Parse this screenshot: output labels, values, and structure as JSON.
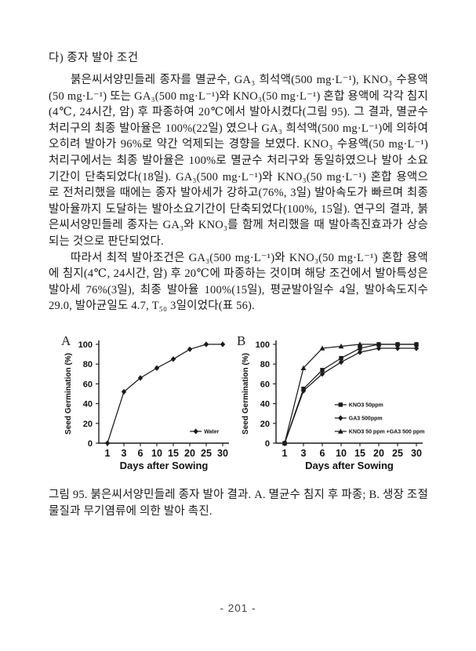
{
  "page": {
    "heading": "다) 종자 발아 조건",
    "paragraph1": "붉은씨서양민들레 종자를 멸균수, GA₃ 희석액(500 mg·L⁻¹), KNO₃ 수용액(50 mg·L⁻¹) 또는 GA₃(500 mg·L⁻¹)와 KNO₃(50 mg·L⁻¹) 혼합 용액에 각각 침지(4℃, 24시간, 암) 후 파종하여 20℃에서 발아시켰다(그림 95). 그 결과, 멸균수 처리구의 최종 발아율은 100%(22일) 였으나 GA₃ 희석액(500 mg·L⁻¹)에 의하여 오히려 발아가 96%로 약간 억제되는 경향을 보였다. KNO₃ 수용액(50 mg·L⁻¹) 처리구에서는 최종 발아율은 100%로 멸균수 처리구와 동일하였으나 발아 소요기간이 단축되었다(18일). GA₃(500 mg·L⁻¹)와 KNO₃(50 mg·L⁻¹) 혼합 용액으로 전처리했을 때에는 종자 발아세가 강하고(76%, 3일) 발아속도가 빠르며 최종 발아율까지 도달하는 발아소요기간이 단축되었다(100%, 15일). 연구의 결과, 붉은씨서양민들레 종자는 GA₃와 KNO₃를 함께 처리했을 때 발아촉진효과가 상승되는 것으로 판단되었다.",
    "paragraph2": "따라서 최적 발아조건은 GA₃(500 mg·L⁻¹)와 KNO₃(50 mg·L⁻¹) 혼합 용액에 침지(4℃, 24시간, 암) 후 20℃에 파종하는 것이며 해당 조건에서 발아특성은 발아세 76%(3일), 최종 발아율 100%(15일), 평균발아일수 4일, 발아속도지수 29.0, 발아균일도 4.7, T₅₀ 3일이었다(표 56).",
    "figure_caption": "그림 95. 붉은씨서양민들레 종자 발아 결과. A. 멸균수 침지 후 파종; B. 생장 조절물질과 무기염류에 의한 발아 촉진.",
    "page_number": "- 201 -"
  },
  "chart_data": [
    {
      "type": "line",
      "panel_label": "A",
      "x": [
        1,
        3,
        6,
        10,
        15,
        20,
        25,
        30
      ],
      "series": [
        {
          "name": "Water",
          "marker": "diamond",
          "values": [
            0,
            52,
            66,
            76,
            85,
            95,
            100,
            100
          ]
        }
      ],
      "xlabel": "Days after Sowing",
      "ylabel": "Seed Germination (%)",
      "ylim": [
        0,
        100
      ],
      "yticks": [
        0,
        20,
        40,
        60,
        80,
        100
      ],
      "grid": false,
      "legend_position": "inside-bottom-right",
      "legend_x_frac": 0.7,
      "line_color": "#1a1a1a"
    },
    {
      "type": "line",
      "panel_label": "B",
      "x": [
        1,
        3,
        6,
        10,
        15,
        20,
        25,
        30
      ],
      "series": [
        {
          "name": "KNO3 50ppm",
          "marker": "square",
          "values": [
            0,
            55,
            74,
            86,
            96,
            100,
            100,
            100
          ]
        },
        {
          "name": "GA3 500ppm",
          "marker": "diamond",
          "values": [
            0,
            53,
            70,
            82,
            92,
            96,
            96,
            96
          ]
        },
        {
          "name": "KNO3 50 ppm +GA3 500 ppm",
          "marker": "triangle",
          "values": [
            0,
            76,
            96,
            98,
            100,
            100,
            100,
            100
          ]
        }
      ],
      "xlabel": "Days after Sowing",
      "ylabel": "Seed Germination (%)",
      "ylim": [
        0,
        100
      ],
      "yticks": [
        0,
        20,
        40,
        60,
        80,
        100
      ],
      "grid": false,
      "legend_position": "inside-middle-right",
      "legend_x_frac": 0.4,
      "line_color": "#1a1a1a"
    }
  ]
}
